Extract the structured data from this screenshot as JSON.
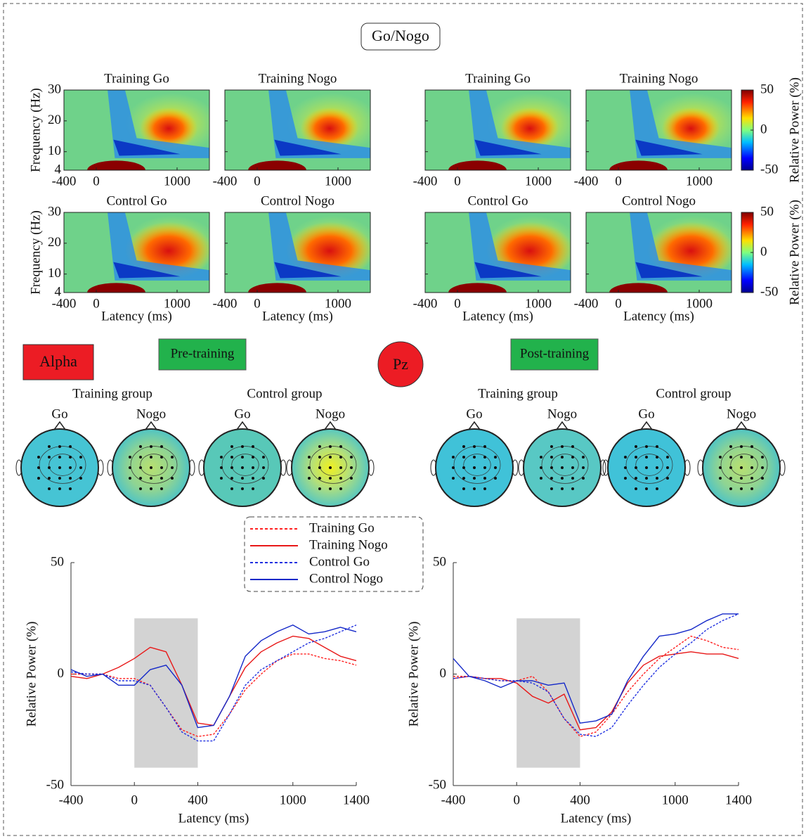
{
  "title": "Go/Nogo",
  "band": "Alpha",
  "electrode": "Pz",
  "time_frequency": {
    "ylabel": "Frequency (Hz)",
    "xlabel": "Latency (ms)",
    "xlim": [
      -400,
      1400
    ],
    "ylim": [
      4,
      30
    ],
    "xticks": [
      -400,
      0,
      1000
    ],
    "yticks": [
      4,
      10,
      20,
      30
    ],
    "colorbar": {
      "label": "Relative Power (%)",
      "lim": [
        -50,
        50
      ],
      "ticks": [
        50,
        0,
        -50
      ]
    },
    "panels": [
      [
        "Training Go",
        "Training Nogo",
        "Training Go",
        "Training Nogo"
      ],
      [
        "Control Go",
        "Control Nogo",
        "Control Go",
        "Control Nogo"
      ]
    ]
  },
  "topography": {
    "sessions": [
      {
        "label": "Pre-training",
        "groups": [
          {
            "name": "Training group",
            "conditions": [
              "Go",
              "Nogo"
            ]
          },
          {
            "name": "Control group",
            "conditions": [
              "Go",
              "Nogo"
            ]
          }
        ]
      },
      {
        "label": "Post-training",
        "groups": [
          {
            "name": "Training group",
            "conditions": [
              "Go",
              "Nogo"
            ]
          },
          {
            "name": "Control group",
            "conditions": [
              "Go",
              "Nogo"
            ]
          }
        ]
      }
    ]
  },
  "chart_data": [
    {
      "type": "line",
      "xlabel": "Latency (ms)",
      "ylabel": "Relative Power (%)",
      "x": [
        -400,
        -300,
        -200,
        -100,
        0,
        100,
        200,
        300,
        400,
        500,
        600,
        700,
        800,
        900,
        1000,
        1100,
        1200,
        1300,
        1400
      ],
      "xlim": [
        -400,
        1400
      ],
      "ylim": [
        -50,
        50
      ],
      "xticks": [
        -400,
        0,
        400,
        1000,
        1400
      ],
      "yticks": [
        -50,
        0,
        50
      ],
      "shaded": {
        "xlim": [
          0,
          400
        ],
        "ylim": [
          -42,
          25
        ]
      },
      "series": [
        {
          "name": "Training Go",
          "color": "#ff2020",
          "dash": true,
          "values": [
            0,
            0,
            0,
            -2,
            -2,
            -5,
            -15,
            -25,
            -28,
            -27,
            -18,
            -7,
            0,
            6,
            9,
            9,
            7,
            6,
            4
          ]
        },
        {
          "name": "Training Nogo",
          "color": "#e81818",
          "dash": false,
          "values": [
            -1,
            -2,
            0,
            3,
            7,
            12,
            10,
            -5,
            -22,
            -23,
            -10,
            3,
            10,
            14,
            17,
            16,
            12,
            8,
            6
          ]
        },
        {
          "name": "Control Go",
          "color": "#2030e0",
          "dash": true,
          "values": [
            1,
            0,
            0,
            -3,
            -3,
            -5,
            -15,
            -26,
            -30,
            -30,
            -18,
            -5,
            2,
            6,
            10,
            14,
            16,
            19,
            22
          ]
        },
        {
          "name": "Control Nogo",
          "color": "#1428c8",
          "dash": false,
          "values": [
            2,
            -1,
            0,
            -5,
            -5,
            2,
            4,
            -5,
            -24,
            -23,
            -10,
            8,
            15,
            19,
            22,
            18,
            19,
            21,
            19
          ]
        }
      ]
    },
    {
      "type": "line",
      "xlabel": "Latency (ms)",
      "ylabel": "Relative Power (%)",
      "x": [
        -400,
        -300,
        -200,
        -100,
        0,
        100,
        200,
        300,
        400,
        500,
        600,
        700,
        800,
        900,
        1000,
        1100,
        1200,
        1300,
        1400
      ],
      "xlim": [
        -400,
        1400
      ],
      "ylim": [
        -50,
        50
      ],
      "xticks": [
        -400,
        0,
        400,
        1000,
        1400
      ],
      "yticks": [
        -50,
        0,
        50
      ],
      "shaded": {
        "xlim": [
          0,
          400
        ],
        "ylim": [
          -42,
          25
        ]
      },
      "series": [
        {
          "color": "#ff2020",
          "dash": true,
          "values": [
            -1,
            -1,
            -2,
            -3,
            -3,
            -1,
            -8,
            -20,
            -28,
            -26,
            -18,
            -8,
            0,
            7,
            12,
            17,
            15,
            12,
            11
          ]
        },
        {
          "color": "#e81818",
          "dash": false,
          "values": [
            -2,
            -1,
            -2,
            -2,
            -4,
            -10,
            -13,
            -9,
            -25,
            -24,
            -17,
            -4,
            4,
            8,
            9,
            10,
            9,
            9,
            7
          ]
        },
        {
          "color": "#2030e0",
          "dash": true,
          "values": [
            -2,
            -1,
            -2,
            -3,
            -3,
            -4,
            -8,
            -20,
            -27,
            -28,
            -24,
            -14,
            -5,
            3,
            9,
            14,
            20,
            24,
            27
          ]
        },
        {
          "color": "#1428c8",
          "dash": false,
          "values": [
            7,
            -1,
            -3,
            -6,
            -3,
            -3,
            -5,
            -4,
            -22,
            -21,
            -18,
            -3,
            8,
            17,
            18,
            20,
            24,
            27,
            27
          ]
        }
      ]
    }
  ]
}
